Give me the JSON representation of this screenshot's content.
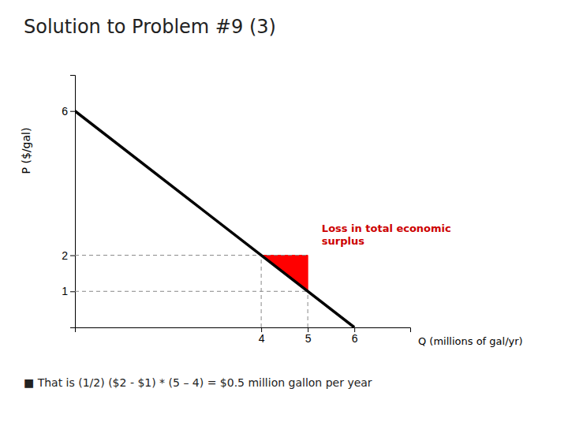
{
  "chart_data": {
    "type": "line",
    "title": "Solution to Problem #9  (3)",
    "x_label": "Q (millions of gal/yr)",
    "y_label": "P ($/gal)",
    "xlim": [
      0,
      7.2
    ],
    "ylim": [
      0,
      7.0
    ],
    "xticks": [
      4,
      5,
      6
    ],
    "yticks": [
      1,
      2,
      6
    ],
    "grid": false,
    "series": [
      {
        "type": "polygon",
        "x": [
          4,
          5,
          5
        ],
        "values": [
          2,
          1,
          2
        ],
        "color": "#ff0000"
      },
      {
        "type": "line",
        "x": [
          0,
          5
        ],
        "values": [
          2,
          2
        ],
        "color": "#888888",
        "line_style": "dashed"
      },
      {
        "type": "line",
        "x": [
          0,
          5
        ],
        "values": [
          1,
          1
        ],
        "color": "#888888",
        "line_style": "dashed"
      },
      {
        "type": "line",
        "x": [
          4,
          4
        ],
        "values": [
          0,
          2
        ],
        "color": "#888888",
        "line_style": "dashed"
      },
      {
        "type": "line",
        "x": [
          5,
          5
        ],
        "values": [
          0,
          1
        ],
        "color": "#888888",
        "line_style": "dashed"
      },
      {
        "type": "line",
        "x": [
          0,
          6
        ],
        "values": [
          6,
          0
        ],
        "color": "#000000",
        "line_style": "solid"
      }
    ],
    "annotations": [
      {
        "text": "Loss in total economic\nsurplus",
        "x": 5.3,
        "y": 2.2,
        "color": "#cc0000"
      },
      {
        "text": "■  That is (1/2) ($2 - $1) * (5 – 4) = $0.5 million gallon per year"
      }
    ]
  }
}
